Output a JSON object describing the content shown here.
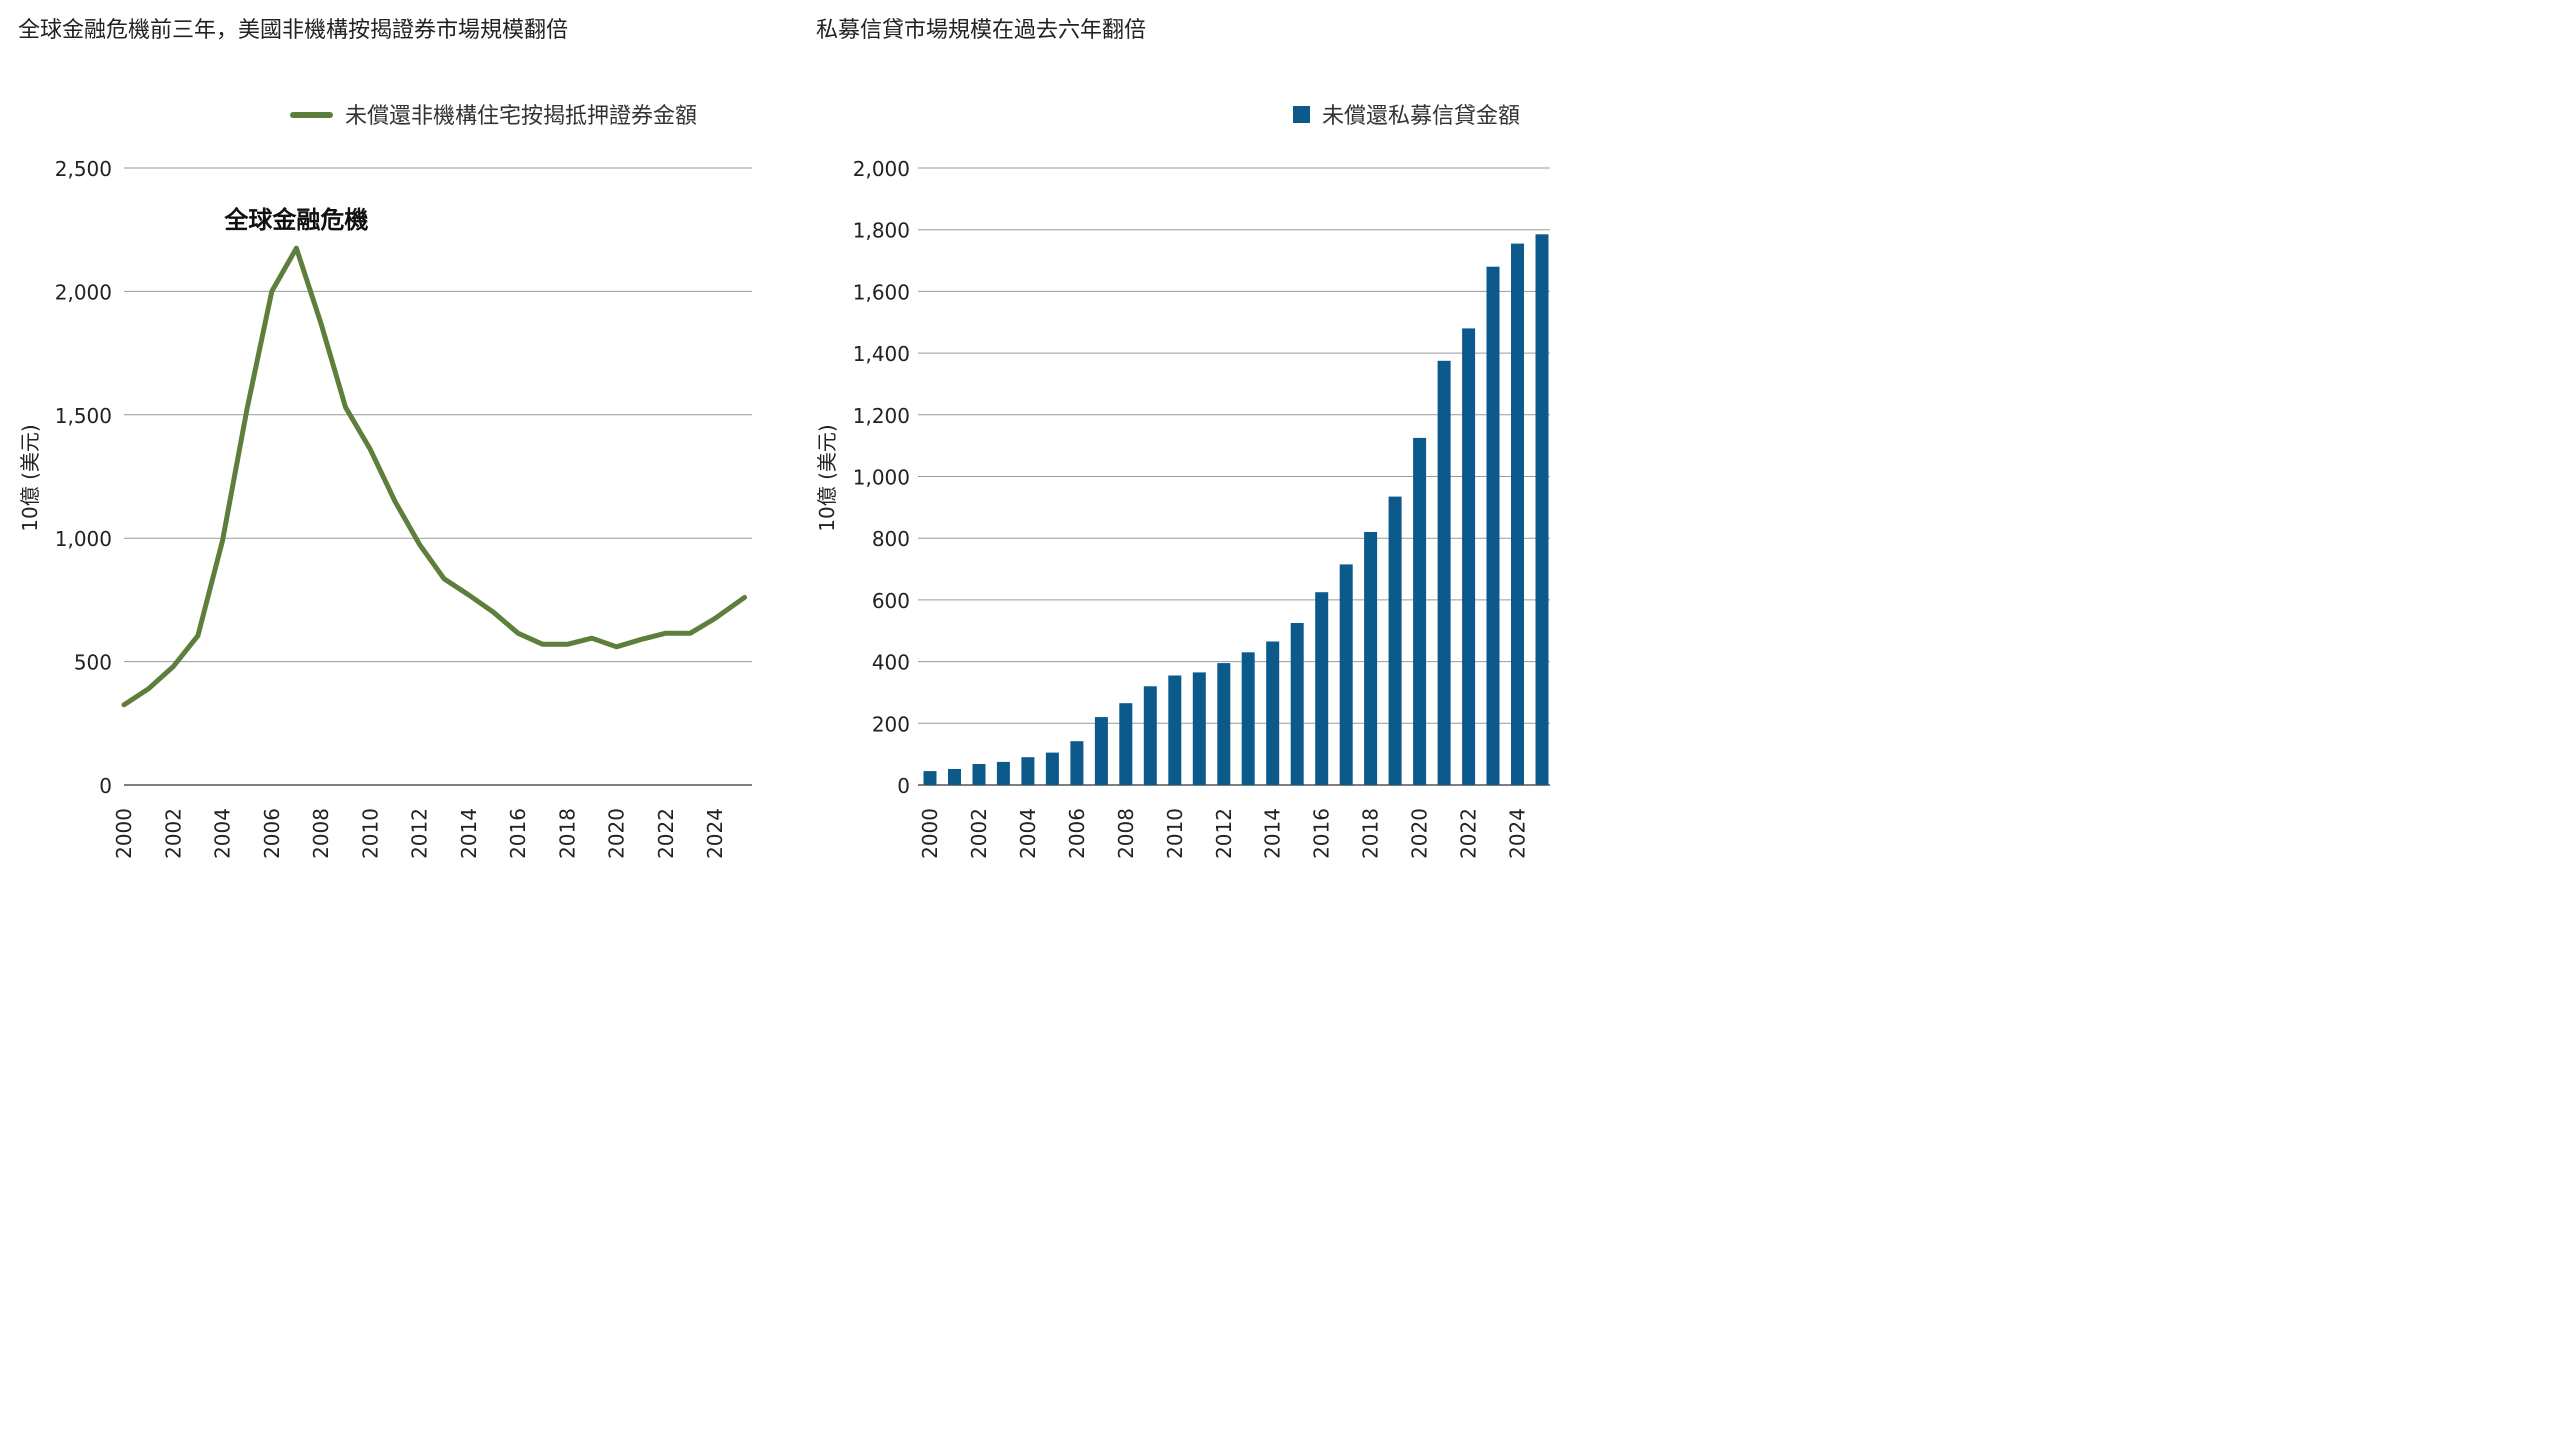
{
  "chart_data": [
    {
      "type": "line",
      "title": "全球金融危機前三年，美國非機構按揭證券市場規模翻倍",
      "ylabel": "10億 (美元)",
      "ylim": [
        0,
        2500
      ],
      "yticks": [
        0,
        500,
        1000,
        1500,
        2000,
        2500
      ],
      "ytick_labels": [
        "0",
        "500",
        "1,000",
        "1,500",
        "2,000",
        "2,500"
      ],
      "xlim": [
        2000,
        2025.5
      ],
      "xticks": [
        "2000",
        "2002",
        "2004",
        "2006",
        "2008",
        "2010",
        "2012",
        "2014",
        "2016",
        "2018",
        "2020",
        "2022",
        "2024"
      ],
      "grid": true,
      "legend_position": "top-right",
      "color": "#5e7f3b",
      "annotation": {
        "text": "全球金融危機",
        "x": 2007,
        "y": 2175
      },
      "series": [
        {
          "name": "未償還非機構住宅按揭抵押證券金額",
          "x": [
            2000,
            2001,
            2002,
            2003,
            2004,
            2005,
            2006,
            2007,
            2008,
            2009,
            2010,
            2011,
            2012,
            2013,
            2014,
            2015,
            2016,
            2017,
            2018,
            2019,
            2020,
            2021,
            2022,
            2023,
            2024,
            2025.2
          ],
          "values": [
            325,
            390,
            480,
            605,
            990,
            1525,
            2000,
            2175,
            1870,
            1530,
            1360,
            1150,
            975,
            835,
            770,
            700,
            615,
            570,
            570,
            595,
            560,
            590,
            615,
            615,
            675,
            760
          ]
        }
      ]
    },
    {
      "type": "bar",
      "title": "私募信貸市場規模在過去六年翻倍",
      "ylabel": "10億 (美元)",
      "ylim": [
        0,
        2000
      ],
      "yticks": [
        0,
        200,
        400,
        600,
        800,
        1000,
        1200,
        1400,
        1600,
        1800,
        2000
      ],
      "ytick_labels": [
        "0",
        "200",
        "400",
        "600",
        "800",
        "1,000",
        "1,200",
        "1,400",
        "1,600",
        "1,800",
        "2,000"
      ],
      "xticks": [
        "2000",
        "2002",
        "2004",
        "2006",
        "2008",
        "2010",
        "2012",
        "2014",
        "2016",
        "2018",
        "2020",
        "2022",
        "2024"
      ],
      "grid": true,
      "legend_position": "top-right",
      "color": "#0c5a8c",
      "categories": [
        2000,
        2001,
        2002,
        2003,
        2004,
        2005,
        2006,
        2007,
        2008,
        2009,
        2010,
        2011,
        2012,
        2013,
        2014,
        2015,
        2016,
        2017,
        2018,
        2019,
        2020,
        2021,
        2022,
        2023,
        2024,
        2025
      ],
      "series": [
        {
          "name": "未償還私募信貸金額",
          "values": [
            45,
            52,
            68,
            75,
            90,
            105,
            142,
            220,
            265,
            320,
            355,
            365,
            395,
            430,
            465,
            525,
            625,
            715,
            820,
            935,
            1125,
            1375,
            1480,
            1680,
            1755,
            1785
          ]
        }
      ]
    }
  ]
}
